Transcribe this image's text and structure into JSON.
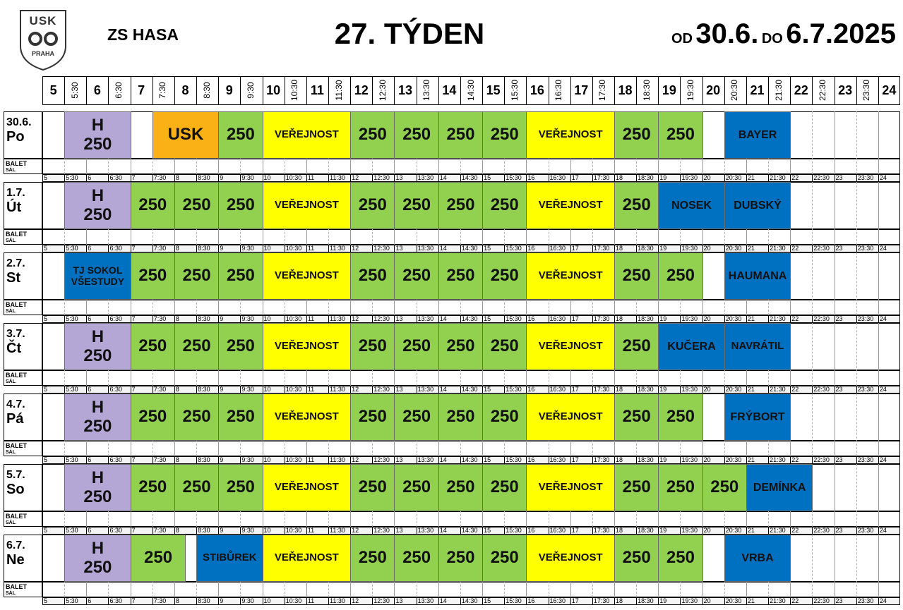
{
  "header": {
    "logo_top": "USK",
    "logo_bottom": "PRAHA",
    "venue": "ZS HASA",
    "week": "27. TÝDEN",
    "from_label": "OD",
    "from_date": "30.6.",
    "to_label": "DO",
    "to_date": "6.7.2025"
  },
  "times": [
    "5",
    "5:30",
    "6",
    "6:30",
    "7",
    "7:30",
    "8",
    "8:30",
    "9",
    "9:30",
    "10",
    "10:30",
    "11",
    "11:30",
    "12",
    "12:30",
    "13",
    "13:30",
    "14",
    "14:30",
    "15",
    "15:30",
    "16",
    "16:30",
    "17",
    "17:30",
    "18",
    "18:30",
    "19",
    "19:30",
    "20",
    "20:30",
    "21",
    "21:30",
    "22",
    "22:30",
    "23",
    "23:30",
    "24"
  ],
  "side_label": [
    "BALET",
    "SÁL"
  ],
  "days": [
    {
      "date": "30.6.",
      "day": "Po",
      "events": [
        {
          "lines": [
            "H",
            "250"
          ],
          "from": "5:30",
          "to": "7",
          "color": "#b4a7d6"
        },
        {
          "lines": [
            "USK"
          ],
          "from": "7:30",
          "to": "9",
          "color": "#f9b115"
        },
        {
          "lines": [
            "250"
          ],
          "from": "9",
          "to": "10",
          "color": "#92d050"
        },
        {
          "lines": [
            "VEŘEJNOST"
          ],
          "from": "10",
          "to": "12",
          "color": "#ffff00"
        },
        {
          "lines": [
            "250"
          ],
          "from": "12",
          "to": "13",
          "color": "#92d050"
        },
        {
          "lines": [
            "250"
          ],
          "from": "13",
          "to": "14",
          "color": "#92d050"
        },
        {
          "lines": [
            "250"
          ],
          "from": "14",
          "to": "15",
          "color": "#92d050"
        },
        {
          "lines": [
            "250"
          ],
          "from": "15",
          "to": "16",
          "color": "#92d050"
        },
        {
          "lines": [
            "VEŘEJNOST"
          ],
          "from": "16",
          "to": "18",
          "color": "#ffff00"
        },
        {
          "lines": [
            "250"
          ],
          "from": "18",
          "to": "19",
          "color": "#92d050"
        },
        {
          "lines": [
            "250"
          ],
          "from": "19",
          "to": "20",
          "color": "#92d050"
        },
        {
          "lines": [
            "BAYER"
          ],
          "from": "20:30",
          "to": "22",
          "color": "#0070c0"
        }
      ]
    },
    {
      "date": "1.7.",
      "day": "Út",
      "events": [
        {
          "lines": [
            "H",
            "250"
          ],
          "from": "5:30",
          "to": "7",
          "color": "#b4a7d6"
        },
        {
          "lines": [
            "250"
          ],
          "from": "7",
          "to": "8",
          "color": "#92d050"
        },
        {
          "lines": [
            "250"
          ],
          "from": "8",
          "to": "9",
          "color": "#92d050"
        },
        {
          "lines": [
            "250"
          ],
          "from": "9",
          "to": "10",
          "color": "#92d050"
        },
        {
          "lines": [
            "VEŘEJNOST"
          ],
          "from": "10",
          "to": "12",
          "color": "#ffff00"
        },
        {
          "lines": [
            "250"
          ],
          "from": "12",
          "to": "13",
          "color": "#92d050"
        },
        {
          "lines": [
            "250"
          ],
          "from": "13",
          "to": "14",
          "color": "#92d050"
        },
        {
          "lines": [
            "250"
          ],
          "from": "14",
          "to": "15",
          "color": "#92d050"
        },
        {
          "lines": [
            "250"
          ],
          "from": "15",
          "to": "16",
          "color": "#92d050"
        },
        {
          "lines": [
            "VEŘEJNOST"
          ],
          "from": "16",
          "to": "18",
          "color": "#ffff00"
        },
        {
          "lines": [
            "250"
          ],
          "from": "18",
          "to": "19",
          "color": "#92d050"
        },
        {
          "lines": [
            "NOSEK"
          ],
          "from": "19",
          "to": "20:30",
          "color": "#0070c0"
        },
        {
          "lines": [
            "DUBSKÝ"
          ],
          "from": "20:30",
          "to": "22",
          "color": "#0070c0"
        }
      ]
    },
    {
      "date": "2.7.",
      "day": "St",
      "events": [
        {
          "lines": [
            "TJ SOKOL",
            "VŠESTUDY"
          ],
          "from": "5:30",
          "to": "7",
          "color": "#0070c0"
        },
        {
          "lines": [
            "250"
          ],
          "from": "7",
          "to": "8",
          "color": "#92d050"
        },
        {
          "lines": [
            "250"
          ],
          "from": "8",
          "to": "9",
          "color": "#92d050"
        },
        {
          "lines": [
            "250"
          ],
          "from": "9",
          "to": "10",
          "color": "#92d050"
        },
        {
          "lines": [
            "VEŘEJNOST"
          ],
          "from": "10",
          "to": "12",
          "color": "#ffff00"
        },
        {
          "lines": [
            "250"
          ],
          "from": "12",
          "to": "13",
          "color": "#92d050"
        },
        {
          "lines": [
            "250"
          ],
          "from": "13",
          "to": "14",
          "color": "#92d050"
        },
        {
          "lines": [
            "250"
          ],
          "from": "14",
          "to": "15",
          "color": "#92d050"
        },
        {
          "lines": [
            "250"
          ],
          "from": "15",
          "to": "16",
          "color": "#92d050"
        },
        {
          "lines": [
            "VEŘEJNOST"
          ],
          "from": "16",
          "to": "18",
          "color": "#ffff00"
        },
        {
          "lines": [
            "250"
          ],
          "from": "18",
          "to": "19",
          "color": "#92d050"
        },
        {
          "lines": [
            "250"
          ],
          "from": "19",
          "to": "20",
          "color": "#92d050"
        },
        {
          "lines": [
            "HAUMANA"
          ],
          "from": "20:30",
          "to": "22",
          "color": "#0070c0"
        }
      ]
    },
    {
      "date": "3.7.",
      "day": "Čt",
      "events": [
        {
          "lines": [
            "H",
            "250"
          ],
          "from": "5:30",
          "to": "7",
          "color": "#b4a7d6"
        },
        {
          "lines": [
            "250"
          ],
          "from": "7",
          "to": "8",
          "color": "#92d050"
        },
        {
          "lines": [
            "250"
          ],
          "from": "8",
          "to": "9",
          "color": "#92d050"
        },
        {
          "lines": [
            "250"
          ],
          "from": "9",
          "to": "10",
          "color": "#92d050"
        },
        {
          "lines": [
            "VEŘEJNOST"
          ],
          "from": "10",
          "to": "12",
          "color": "#ffff00"
        },
        {
          "lines": [
            "250"
          ],
          "from": "12",
          "to": "13",
          "color": "#92d050"
        },
        {
          "lines": [
            "250"
          ],
          "from": "13",
          "to": "14",
          "color": "#92d050"
        },
        {
          "lines": [
            "250"
          ],
          "from": "14",
          "to": "15",
          "color": "#92d050"
        },
        {
          "lines": [
            "250"
          ],
          "from": "15",
          "to": "16",
          "color": "#92d050"
        },
        {
          "lines": [
            "VEŘEJNOST"
          ],
          "from": "16",
          "to": "18",
          "color": "#ffff00"
        },
        {
          "lines": [
            "250"
          ],
          "from": "18",
          "to": "19",
          "color": "#92d050"
        },
        {
          "lines": [
            "KUČERA"
          ],
          "from": "19",
          "to": "20:30",
          "color": "#0070c0"
        },
        {
          "lines": [
            "NAVRÁTIL"
          ],
          "from": "20:30",
          "to": "22",
          "color": "#0070c0"
        }
      ]
    },
    {
      "date": "4.7.",
      "day": "Pá",
      "events": [
        {
          "lines": [
            "H",
            "250"
          ],
          "from": "5:30",
          "to": "7",
          "color": "#b4a7d6"
        },
        {
          "lines": [
            "250"
          ],
          "from": "7",
          "to": "8",
          "color": "#92d050"
        },
        {
          "lines": [
            "250"
          ],
          "from": "8",
          "to": "9",
          "color": "#92d050"
        },
        {
          "lines": [
            "250"
          ],
          "from": "9",
          "to": "10",
          "color": "#92d050"
        },
        {
          "lines": [
            "VEŘEJNOST"
          ],
          "from": "10",
          "to": "12",
          "color": "#ffff00"
        },
        {
          "lines": [
            "250"
          ],
          "from": "12",
          "to": "13",
          "color": "#92d050"
        },
        {
          "lines": [
            "250"
          ],
          "from": "13",
          "to": "14",
          "color": "#92d050"
        },
        {
          "lines": [
            "250"
          ],
          "from": "14",
          "to": "15",
          "color": "#92d050"
        },
        {
          "lines": [
            "250"
          ],
          "from": "15",
          "to": "16",
          "color": "#92d050"
        },
        {
          "lines": [
            "VEŘEJNOST"
          ],
          "from": "16",
          "to": "18",
          "color": "#ffff00"
        },
        {
          "lines": [
            "250"
          ],
          "from": "18",
          "to": "19",
          "color": "#92d050"
        },
        {
          "lines": [
            "250"
          ],
          "from": "19",
          "to": "20",
          "color": "#92d050"
        },
        {
          "lines": [
            "FRÝBORT"
          ],
          "from": "20:30",
          "to": "22",
          "color": "#0070c0"
        }
      ]
    },
    {
      "date": "5.7.",
      "day": "So",
      "events": [
        {
          "lines": [
            "H",
            "250"
          ],
          "from": "5:30",
          "to": "7",
          "color": "#b4a7d6"
        },
        {
          "lines": [
            "250"
          ],
          "from": "7",
          "to": "8",
          "color": "#92d050"
        },
        {
          "lines": [
            "250"
          ],
          "from": "8",
          "to": "9",
          "color": "#92d050"
        },
        {
          "lines": [
            "250"
          ],
          "from": "9",
          "to": "10",
          "color": "#92d050"
        },
        {
          "lines": [
            "VEŘEJNOST"
          ],
          "from": "10",
          "to": "12",
          "color": "#ffff00"
        },
        {
          "lines": [
            "250"
          ],
          "from": "12",
          "to": "13",
          "color": "#92d050"
        },
        {
          "lines": [
            "250"
          ],
          "from": "13",
          "to": "14",
          "color": "#92d050"
        },
        {
          "lines": [
            "250"
          ],
          "from": "14",
          "to": "15",
          "color": "#92d050"
        },
        {
          "lines": [
            "250"
          ],
          "from": "15",
          "to": "16",
          "color": "#92d050"
        },
        {
          "lines": [
            "VEŘEJNOST"
          ],
          "from": "16",
          "to": "18",
          "color": "#ffff00"
        },
        {
          "lines": [
            "250"
          ],
          "from": "18",
          "to": "19",
          "color": "#92d050"
        },
        {
          "lines": [
            "250"
          ],
          "from": "19",
          "to": "20",
          "color": "#92d050"
        },
        {
          "lines": [
            "250"
          ],
          "from": "20",
          "to": "21",
          "color": "#92d050"
        },
        {
          "lines": [
            "DEMÍNKA"
          ],
          "from": "21",
          "to": "22:30",
          "color": "#0070c0"
        }
      ]
    },
    {
      "date": "6.7.",
      "day": "Ne",
      "events": [
        {
          "lines": [
            "H",
            "250"
          ],
          "from": "5:30",
          "to": "7",
          "color": "#b4a7d6"
        },
        {
          "lines": [
            "250"
          ],
          "from": "7",
          "to": "8:15",
          "color": "#92d050"
        },
        {
          "lines": [
            "STIBŮREK"
          ],
          "from": "8:30",
          "to": "10",
          "color": "#0070c0"
        },
        {
          "lines": [
            "VEŘEJNOST"
          ],
          "from": "10",
          "to": "12",
          "color": "#ffff00"
        },
        {
          "lines": [
            "250"
          ],
          "from": "12",
          "to": "13",
          "color": "#92d050"
        },
        {
          "lines": [
            "250"
          ],
          "from": "13",
          "to": "14",
          "color": "#92d050"
        },
        {
          "lines": [
            "250"
          ],
          "from": "14",
          "to": "15",
          "color": "#92d050"
        },
        {
          "lines": [
            "250"
          ],
          "from": "15",
          "to": "16",
          "color": "#92d050"
        },
        {
          "lines": [
            "VEŘEJNOST"
          ],
          "from": "16",
          "to": "18",
          "color": "#ffff00"
        },
        {
          "lines": [
            "250"
          ],
          "from": "18",
          "to": "19",
          "color": "#92d050"
        },
        {
          "lines": [
            "250"
          ],
          "from": "19",
          "to": "20",
          "color": "#92d050"
        },
        {
          "lines": [
            "VRBA"
          ],
          "from": "20:30",
          "to": "22",
          "color": "#0070c0"
        }
      ]
    }
  ]
}
